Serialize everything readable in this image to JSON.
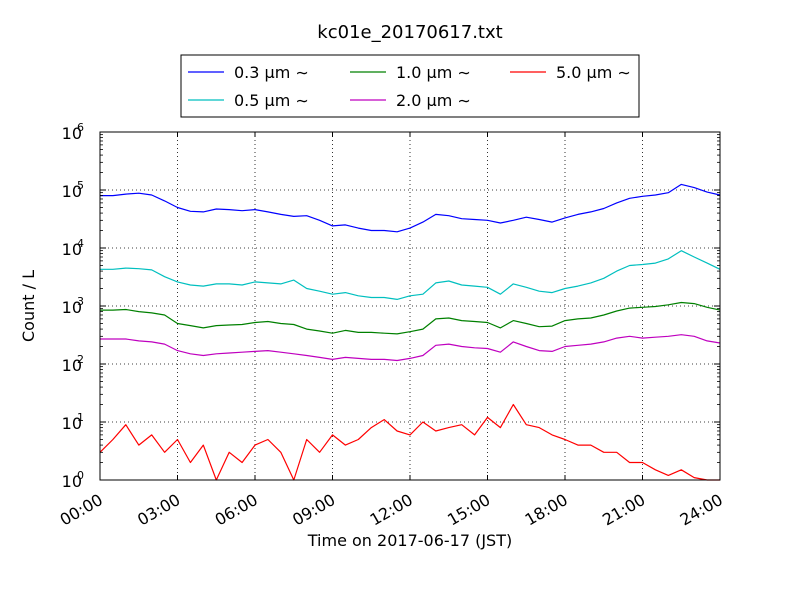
{
  "chart_data": {
    "type": "line",
    "title": "kc01e_20170617.txt",
    "xlabel": "Time on 2017-06-17 (JST)",
    "ylabel": "Count / L",
    "x_ticks": [
      "00:00",
      "03:00",
      "06:00",
      "09:00",
      "12:00",
      "15:00",
      "18:00",
      "21:00",
      "24:00"
    ],
    "xlim_hours": [
      0,
      24
    ],
    "y_scale": "log",
    "ylim": [
      1,
      1000000
    ],
    "y_ticks": [
      {
        "base": "10",
        "exp": "0"
      },
      {
        "base": "10",
        "exp": "1"
      },
      {
        "base": "10",
        "exp": "2"
      },
      {
        "base": "10",
        "exp": "3"
      },
      {
        "base": "10",
        "exp": "4"
      },
      {
        "base": "10",
        "exp": "5"
      },
      {
        "base": "10",
        "exp": "6"
      }
    ],
    "grid": true,
    "legend_position": "top-center",
    "x_hours": [
      0,
      0.5,
      1,
      1.5,
      2,
      2.5,
      3,
      3.5,
      4,
      4.5,
      5,
      5.5,
      6,
      6.5,
      7,
      7.5,
      8,
      8.5,
      9,
      9.5,
      10,
      10.5,
      11,
      11.5,
      12,
      12.5,
      13,
      13.5,
      14,
      14.5,
      15,
      15.5,
      16,
      16.5,
      17,
      17.5,
      18,
      18.5,
      19,
      19.5,
      20,
      20.5,
      21,
      21.5,
      22,
      22.5,
      23,
      23.5,
      24
    ],
    "series": [
      {
        "name": "0.3 μm ∼",
        "color": "#0000ff",
        "values": [
          80000,
          80000,
          85000,
          88000,
          82000,
          65000,
          50000,
          43000,
          42000,
          47000,
          46000,
          44000,
          46000,
          42000,
          38000,
          35000,
          36000,
          30000,
          24000,
          25000,
          22000,
          20000,
          20000,
          19000,
          22000,
          28000,
          38000,
          36000,
          32000,
          31000,
          30000,
          27000,
          30000,
          34000,
          31000,
          28000,
          33000,
          38000,
          42000,
          48000,
          60000,
          72000,
          78000,
          82000,
          90000,
          125000,
          110000,
          92000,
          82000
        ]
      },
      {
        "name": "0.5 μm ∼",
        "color": "#00bfbf",
        "values": [
          4300,
          4300,
          4500,
          4400,
          4200,
          3200,
          2600,
          2300,
          2200,
          2400,
          2400,
          2300,
          2600,
          2500,
          2400,
          2800,
          2000,
          1800,
          1600,
          1700,
          1500,
          1400,
          1400,
          1300,
          1500,
          1600,
          2500,
          2700,
          2300,
          2200,
          2100,
          1600,
          2400,
          2100,
          1800,
          1700,
          2000,
          2200,
          2500,
          3000,
          4000,
          5000,
          5200,
          5500,
          6500,
          9000,
          7000,
          5500,
          4300
        ]
      },
      {
        "name": "1.0 μm ∼",
        "color": "#008000",
        "values": [
          850,
          850,
          870,
          800,
          760,
          700,
          500,
          460,
          420,
          460,
          470,
          480,
          520,
          540,
          500,
          480,
          400,
          370,
          340,
          380,
          350,
          350,
          340,
          330,
          360,
          400,
          600,
          620,
          560,
          540,
          520,
          420,
          560,
          500,
          440,
          450,
          560,
          600,
          620,
          700,
          820,
          920,
          950,
          980,
          1050,
          1150,
          1100,
          950,
          850
        ]
      },
      {
        "name": "2.0 μm ∼",
        "color": "#bf00bf",
        "values": [
          270,
          270,
          270,
          250,
          240,
          220,
          170,
          150,
          140,
          150,
          155,
          160,
          165,
          170,
          160,
          150,
          140,
          130,
          120,
          130,
          125,
          120,
          120,
          115,
          125,
          140,
          210,
          220,
          200,
          190,
          185,
          160,
          240,
          200,
          170,
          165,
          200,
          210,
          220,
          240,
          280,
          300,
          280,
          290,
          300,
          320,
          300,
          250,
          230
        ]
      },
      {
        "name": "5.0 μm ∼",
        "color": "#ff0000",
        "values": [
          3,
          5,
          9,
          4,
          6,
          3,
          5,
          2,
          4,
          1,
          3,
          2,
          4,
          5,
          3,
          1,
          5,
          3,
          6,
          4,
          5,
          8,
          11,
          7,
          6,
          10,
          7,
          8,
          9,
          6,
          12,
          8,
          20,
          9,
          8,
          6,
          5,
          4,
          4,
          3,
          3,
          2,
          2,
          1.5,
          1.2,
          1.5,
          1.1,
          1,
          1
        ]
      }
    ]
  }
}
